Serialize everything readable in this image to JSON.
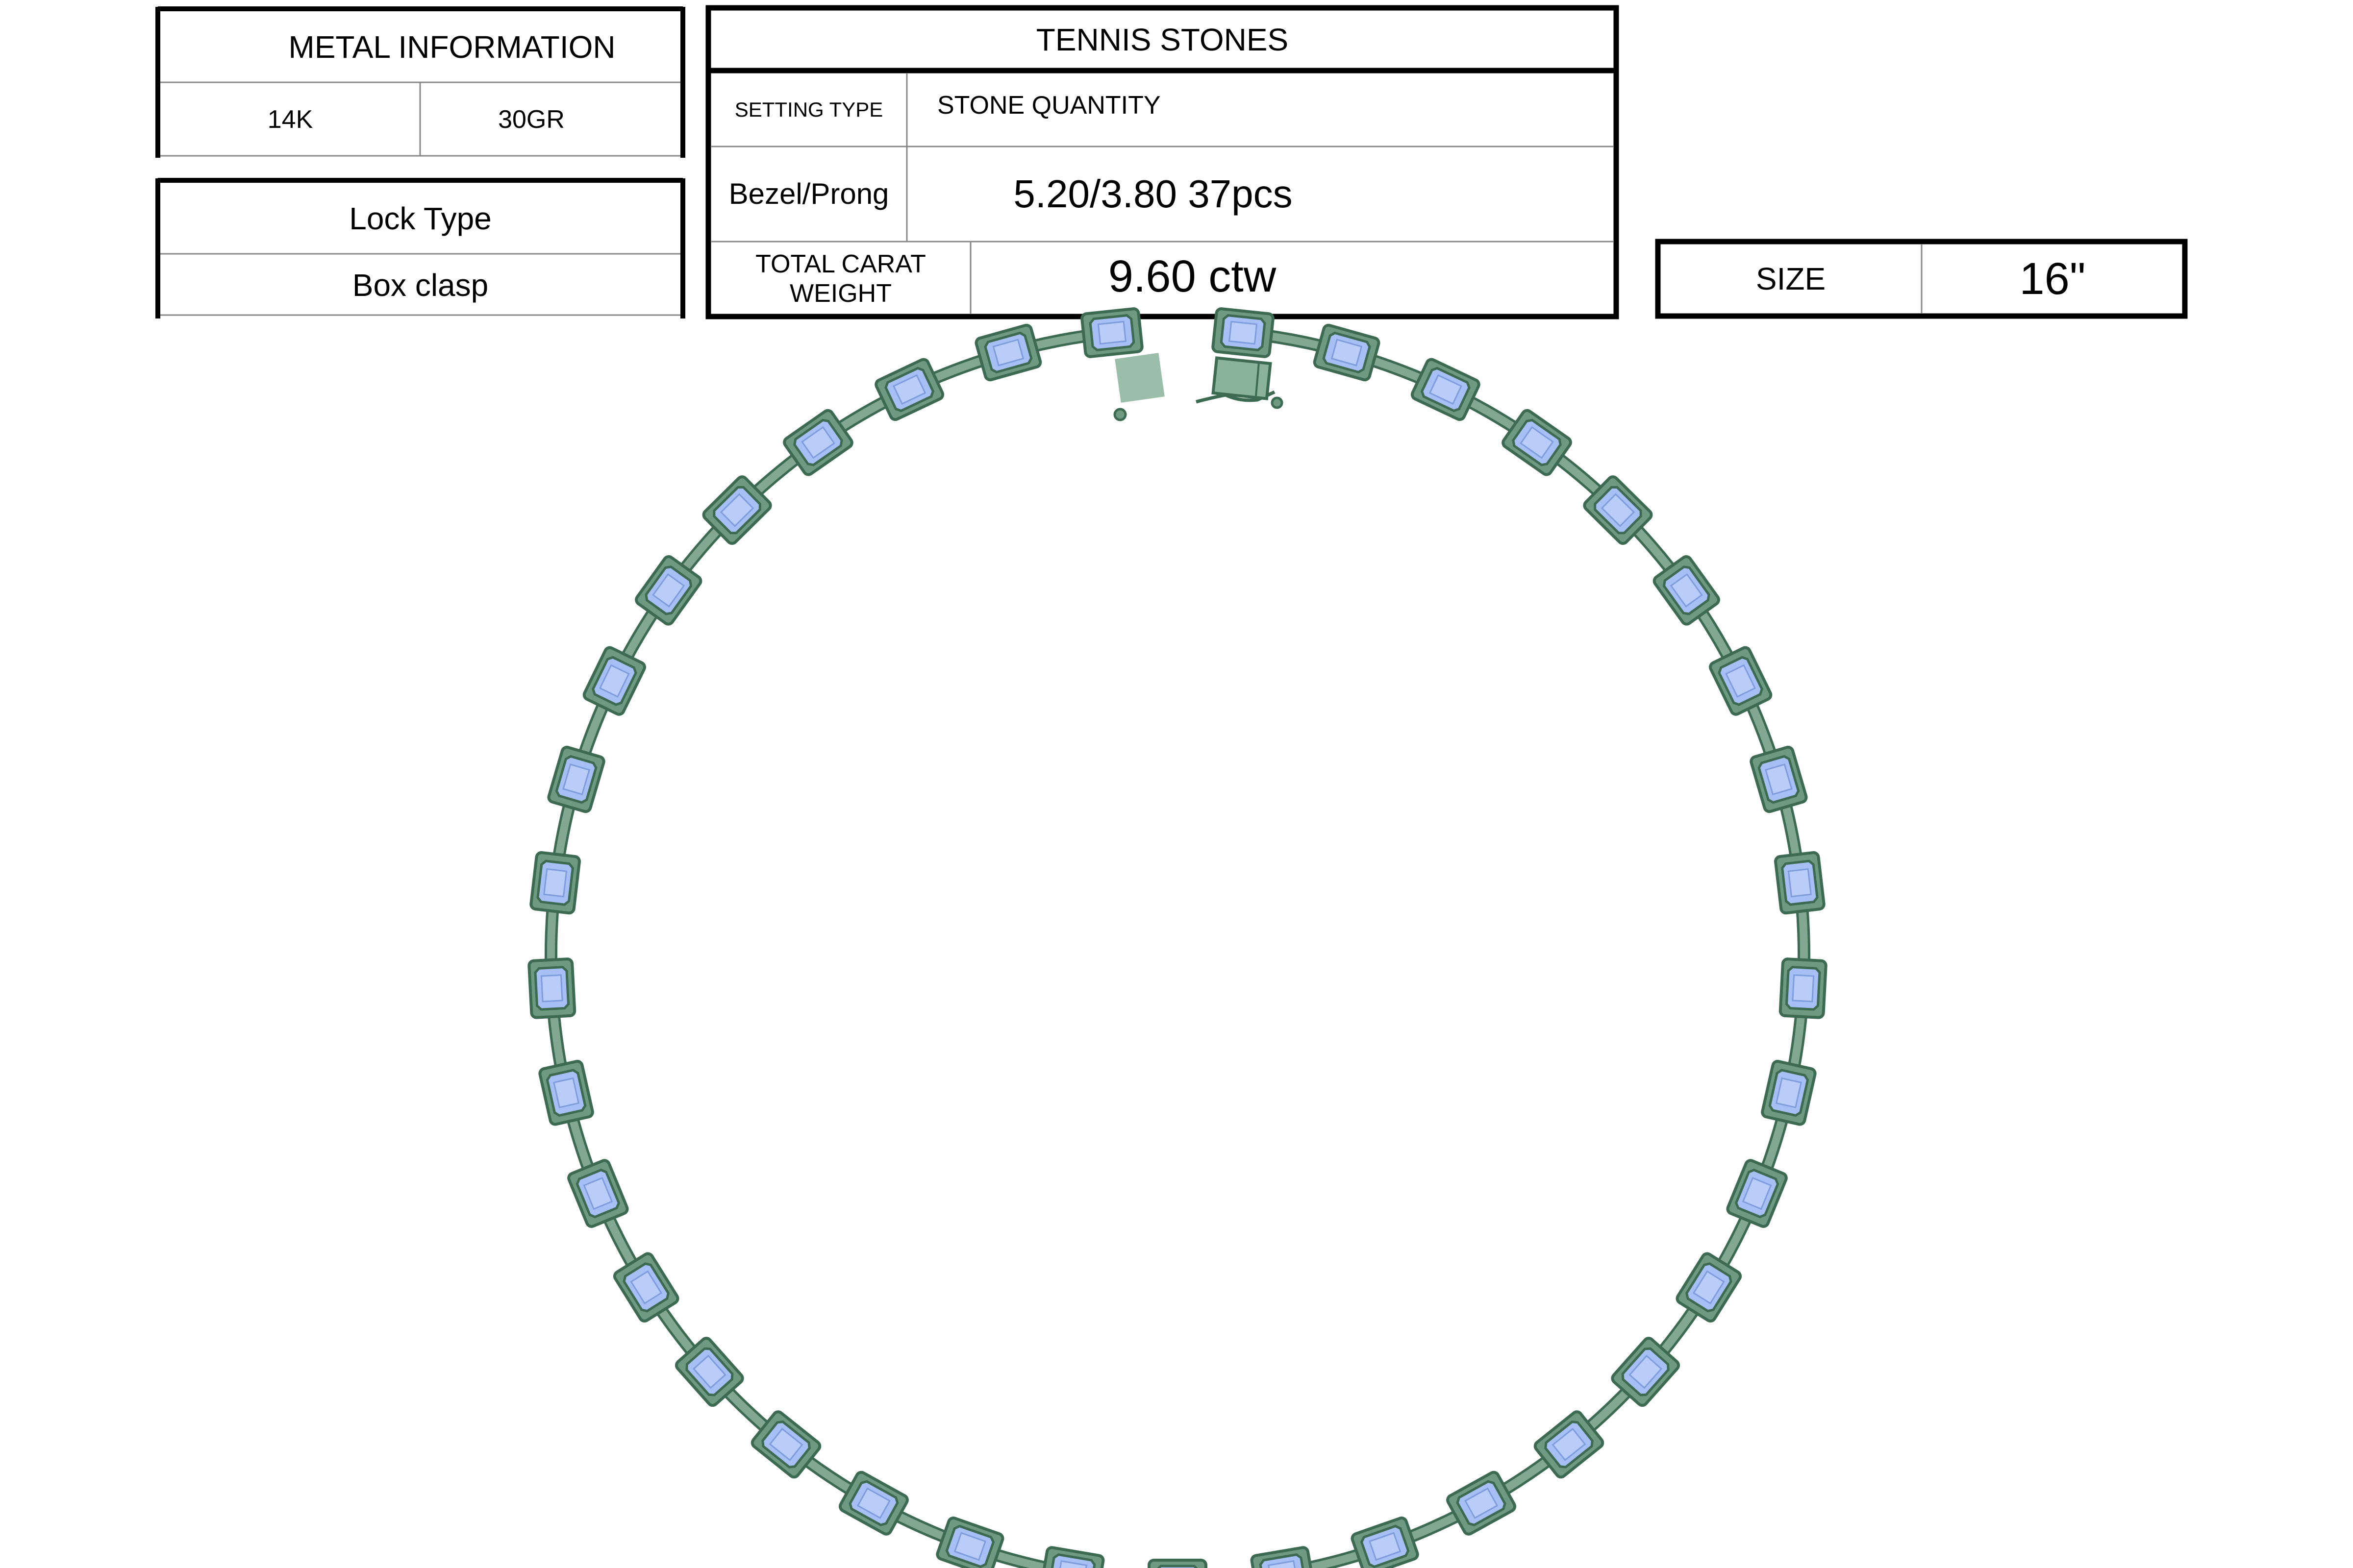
{
  "metal_information": {
    "title": "METAL INFORMATION",
    "metal": "14K",
    "weight": "30GR"
  },
  "lock_type": {
    "title": "Lock Type",
    "value": "Box clasp"
  },
  "tennis_stones": {
    "title": "TENNIS STONES",
    "setting_type_label": "SETTING TYPE",
    "stone_quantity_label": "STONE QUANTITY",
    "setting_type_value": "Bezel/Prong",
    "stone_quantity_value": "5.20/3.80 37pcs",
    "total_carat_label_line1": "TOTAL CARAT",
    "total_carat_label_line2": "WEIGHT",
    "total_carat_value": "9.60 ctw"
  },
  "size": {
    "label": "SIZE",
    "value": "16\""
  },
  "necklace": {
    "stone_count": 37,
    "stone_color": "#a6bff4",
    "setting_color": "#6e9a82",
    "metal_color": "#83a892",
    "outline_color": "#3c6b52"
  }
}
